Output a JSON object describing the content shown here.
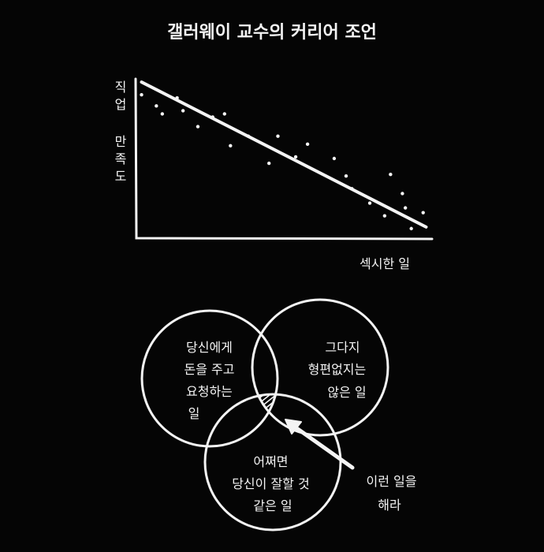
{
  "title": "갤러웨이 교수의 커리어 조언",
  "chart_data": {
    "type": "scatter",
    "title": "갤러웨이 교수의 커리어 조언",
    "xlabel": "섹시한 일",
    "ylabel": "직업 만족도",
    "xlim": [
      0,
      100
    ],
    "ylim": [
      0,
      100
    ],
    "grid": false,
    "points": [
      [
        2,
        90
      ],
      [
        7,
        83
      ],
      [
        9,
        78
      ],
      [
        14,
        88
      ],
      [
        16,
        80
      ],
      [
        21,
        70
      ],
      [
        26,
        76
      ],
      [
        30,
        78
      ],
      [
        32,
        58
      ],
      [
        38,
        64
      ],
      [
        45,
        47
      ],
      [
        48,
        64
      ],
      [
        54,
        51
      ],
      [
        58,
        59
      ],
      [
        67,
        50
      ],
      [
        71,
        39
      ],
      [
        73,
        31
      ],
      [
        86,
        40
      ],
      [
        79,
        22
      ],
      [
        84,
        14
      ],
      [
        90,
        28
      ],
      [
        91,
        19
      ],
      [
        93,
        6
      ],
      [
        97,
        16
      ]
    ],
    "trend_line": [
      [
        2,
        98
      ],
      [
        98,
        7
      ]
    ]
  },
  "venn": {
    "left": [
      "당신에게",
      "돈을 주고",
      "요청하는",
      "일"
    ],
    "right": [
      "그다지",
      "형편없지는",
      "않은 일"
    ],
    "bottom": [
      "어쩌면",
      "당신이 잘할 것",
      "같은 일"
    ],
    "arrow_label": [
      "이런 일을",
      "해라"
    ]
  },
  "colors": {
    "background": "#050505",
    "ink": "#f4f4f4"
  }
}
